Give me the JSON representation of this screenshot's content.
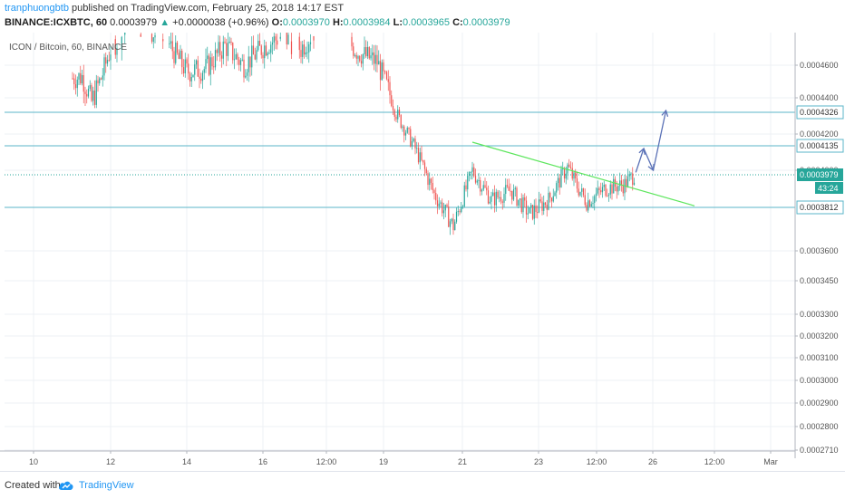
{
  "header": {
    "author": "tranphuongbtb",
    "published_text": " published on TradingView.com, February 25, 2018 14:17 EST",
    "symbol": "BINANCE:ICXBTC, 60",
    "last": "0.0003979",
    "change": "+0.0000038 (+0.96%)",
    "o_label": "O:",
    "o_value": "0.0003970",
    "h_label": "H:",
    "h_value": "0.0003984",
    "l_label": "L:",
    "l_value": "0.0003965",
    "c_label": "C:",
    "c_value": "0.0003979"
  },
  "footer": {
    "created_with": "Created with",
    "brand": "TradingView"
  },
  "colors": {
    "bull": "#26a69a",
    "bear": "#ef5350",
    "hline": "#5bb6c8",
    "trendline": "#5ee65e",
    "arrow": "#5b72b7",
    "grid": "#eef0f4",
    "accent": "#2196f3"
  },
  "chart_data": {
    "type": "candlestick",
    "title": "ICON / Bitcoin, 60, BINANCE",
    "y_ticks": [
      "0.0004600",
      "0.0004400",
      "0.0004200",
      "0.0004000",
      "0.0003600",
      "0.0003450",
      "0.0003300",
      "0.0003200",
      "0.0003100",
      "0.0003000",
      "0.0002900",
      "0.0002800",
      "0.0002710"
    ],
    "x_ticks": [
      "10",
      "12",
      "14",
      "16",
      "12:00",
      "19",
      "21",
      "23",
      "12:00",
      "26",
      "12:00",
      "Mar"
    ],
    "horizontal_levels": [
      {
        "label": "0.0004326"
      },
      {
        "label": "0.0004135"
      },
      {
        "label": "0.0003812"
      }
    ],
    "last_price_label": "0.0003979",
    "countdown_label": "43:24",
    "price_path": [
      {
        "t": "Feb 10 12:00",
        "p": 0.00045
      },
      {
        "t": "Feb 11 06:00",
        "p": 0.000453
      },
      {
        "t": "Feb 11 12:00",
        "p": 0.000438
      },
      {
        "t": "Feb 11 18:00",
        "p": 0.000452
      },
      {
        "t": "Feb 12 00:00",
        "p": 0.00047
      },
      {
        "t": "Feb 12 12:00",
        "p": 0.000484
      },
      {
        "t": "Feb 13 00:00",
        "p": 0.000482
      },
      {
        "t": "Feb 13 12:00",
        "p": 0.000474
      },
      {
        "t": "Feb 14 00:00",
        "p": 0.000456
      },
      {
        "t": "Feb 14 12:00",
        "p": 0.000458
      },
      {
        "t": "Feb 15 00:00",
        "p": 0.000472
      },
      {
        "t": "Feb 15 12:00",
        "p": 0.00046
      },
      {
        "t": "Feb 16 00:00",
        "p": 0.000471
      },
      {
        "t": "Feb 16 12:00",
        "p": 0.000478
      },
      {
        "t": "Feb 17 00:00",
        "p": 0.00047
      },
      {
        "t": "Feb 17 12:00",
        "p": 0.000486
      },
      {
        "t": "Feb 18 00:00",
        "p": 0.00048
      },
      {
        "t": "Feb 18 12:00",
        "p": 0.000468
      },
      {
        "t": "Feb 19 00:00",
        "p": 0.000462
      },
      {
        "t": "Feb 19 12:00",
        "p": 0.000432
      },
      {
        "t": "Feb 20 00:00",
        "p": 0.000412
      },
      {
        "t": "Feb 20 12:00",
        "p": 0.000388
      },
      {
        "t": "Feb 21 00:00",
        "p": 0.000372
      },
      {
        "t": "Feb 21 12:00",
        "p": 0.0004
      },
      {
        "t": "Feb 22 00:00",
        "p": 0.000385
      },
      {
        "t": "Feb 22 12:00",
        "p": 0.00039
      },
      {
        "t": "Feb 23 00:00",
        "p": 0.000378
      },
      {
        "t": "Feb 23 12:00",
        "p": 0.000385
      },
      {
        "t": "Feb 24 00:00",
        "p": 0.000402
      },
      {
        "t": "Feb 24 06:00",
        "p": 0.000392
      },
      {
        "t": "Feb 24 12:00",
        "p": 0.000384
      },
      {
        "t": "Feb 25 00:00",
        "p": 0.000391
      },
      {
        "t": "Feb 25 12:00",
        "p": 0.000393
      },
      {
        "t": "Feb 25 18:00",
        "p": 0.000398
      }
    ],
    "trendline": [
      {
        "t": "Feb 21 12:00",
        "p": 0.0004155
      },
      {
        "t": "Feb 27 08:00",
        "p": 0.000382
      }
    ],
    "projection_arrows": [
      [
        {
          "t": "Feb 25 19:00",
          "p": 0.000399
        },
        {
          "t": "Feb 26 00:00",
          "p": 0.000412
        }
      ],
      [
        {
          "t": "Feb 26 00:00",
          "p": 0.000412
        },
        {
          "t": "Feb 26 06:00",
          "p": 0.0004
        }
      ],
      [
        {
          "t": "Feb 26 06:00",
          "p": 0.0004
        },
        {
          "t": "Feb 26 14:00",
          "p": 0.0004335
        }
      ]
    ]
  }
}
